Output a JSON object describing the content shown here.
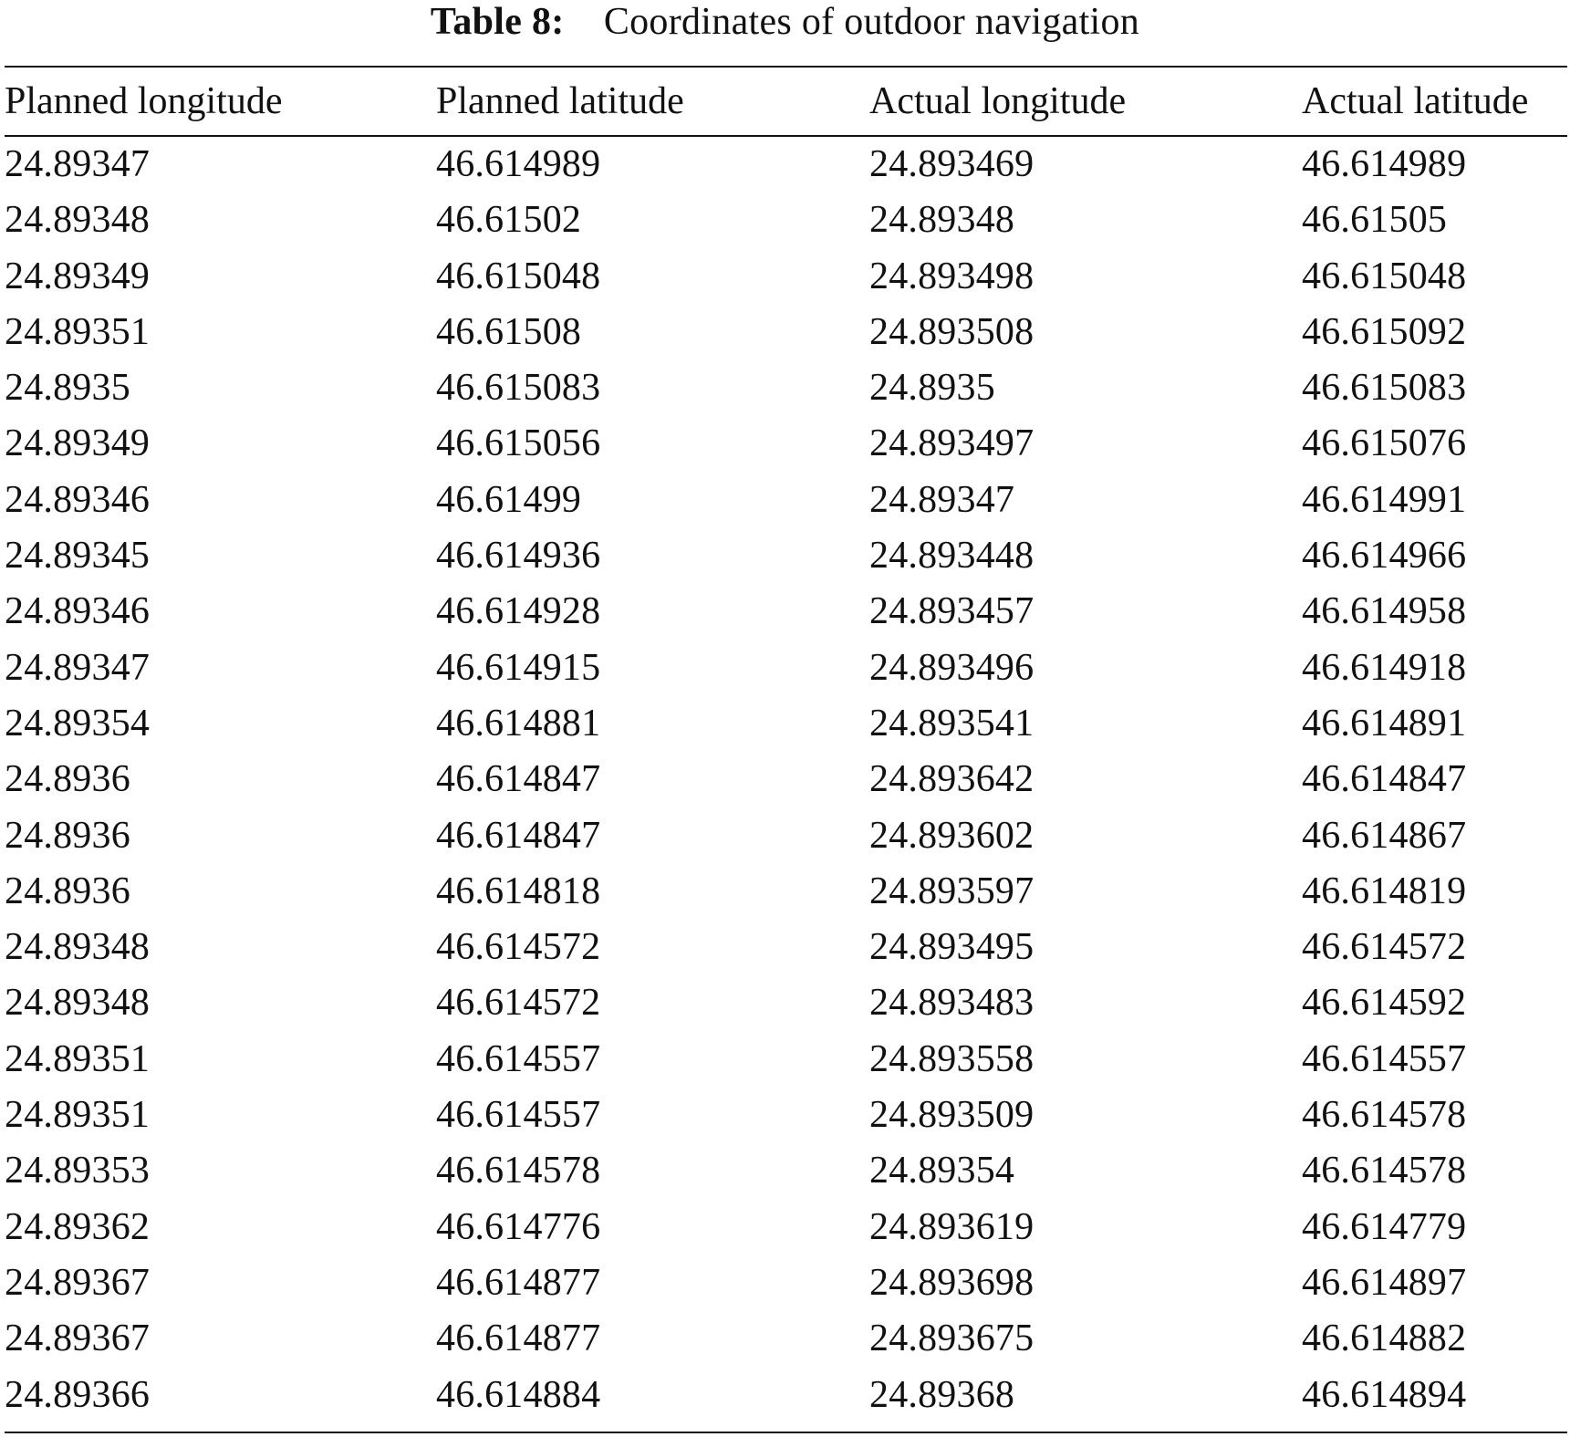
{
  "caption": {
    "label": "Table 8:",
    "text": "Coordinates of outdoor navigation"
  },
  "table": {
    "columns": [
      "Planned longitude",
      "Planned latitude",
      "Actual longitude",
      "Actual latitude"
    ],
    "rows": [
      [
        "24.89347",
        "46.614989",
        "24.893469",
        "46.614989"
      ],
      [
        "24.89348",
        "46.61502",
        "24.89348",
        "46.61505"
      ],
      [
        "24.89349",
        "46.615048",
        "24.893498",
        "46.615048"
      ],
      [
        "24.89351",
        "46.61508",
        "24.893508",
        "46.615092"
      ],
      [
        "24.8935",
        "46.615083",
        "24.8935",
        "46.615083"
      ],
      [
        "24.89349",
        "46.615056",
        "24.893497",
        "46.615076"
      ],
      [
        "24.89346",
        "46.61499",
        "24.89347",
        "46.614991"
      ],
      [
        "24.89345",
        "46.614936",
        "24.893448",
        "46.614966"
      ],
      [
        "24.89346",
        "46.614928",
        "24.893457",
        "46.614958"
      ],
      [
        "24.89347",
        "46.614915",
        "24.893496",
        "46.614918"
      ],
      [
        "24.89354",
        "46.614881",
        "24.893541",
        "46.614891"
      ],
      [
        "24.8936",
        "46.614847",
        "24.893642",
        "46.614847"
      ],
      [
        "24.8936",
        "46.614847",
        "24.893602",
        "46.614867"
      ],
      [
        "24.8936",
        "46.614818",
        "24.893597",
        "46.614819"
      ],
      [
        "24.89348",
        "46.614572",
        "24.893495",
        "46.614572"
      ],
      [
        "24.89348",
        "46.614572",
        "24.893483",
        "46.614592"
      ],
      [
        "24.89351",
        "46.614557",
        "24.893558",
        "46.614557"
      ],
      [
        "24.89351",
        "46.614557",
        "24.893509",
        "46.614578"
      ],
      [
        "24.89353",
        "46.614578",
        "24.89354",
        "46.614578"
      ],
      [
        "24.89362",
        "46.614776",
        "24.893619",
        "46.614779"
      ],
      [
        "24.89367",
        "46.614877",
        "24.893698",
        "46.614897"
      ],
      [
        "24.89367",
        "46.614877",
        "24.893675",
        "46.614882"
      ],
      [
        "24.89366",
        "46.614884",
        "24.89368",
        "46.614894"
      ]
    ]
  },
  "colors": {
    "text": "#111111",
    "background": "#ffffff"
  }
}
